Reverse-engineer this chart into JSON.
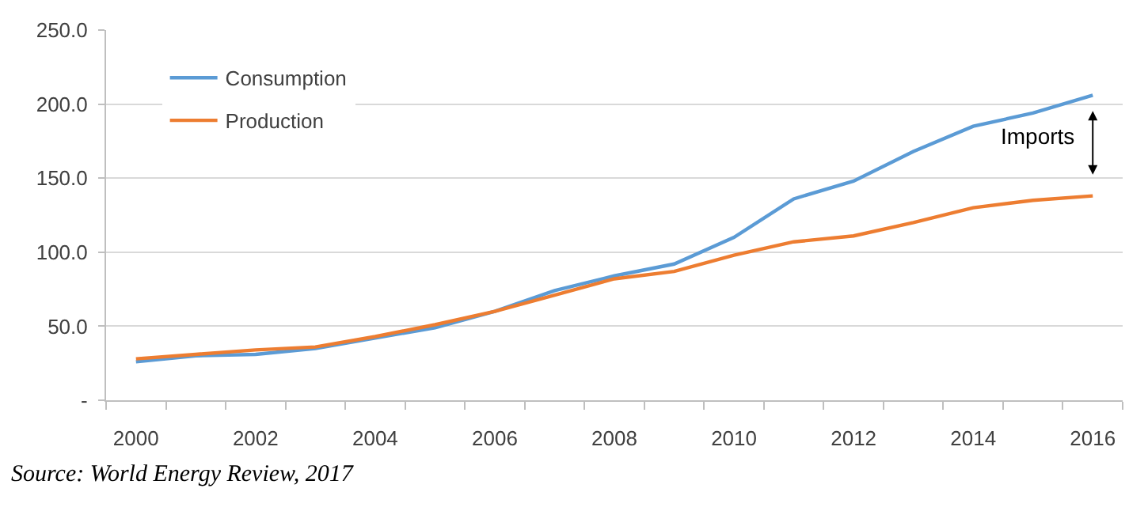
{
  "chart_data": {
    "type": "line",
    "categories": [
      "2000",
      null,
      "2002",
      null,
      "2004",
      null,
      "2006",
      null,
      "2008",
      null,
      "2010",
      null,
      "2012",
      null,
      "2014",
      null,
      "2016"
    ],
    "series": [
      {
        "name": "Consumption",
        "color": "#5b9bd5",
        "values": [
          26,
          30,
          31,
          35,
          42,
          49,
          60,
          74,
          84,
          92,
          110,
          136,
          148,
          168,
          185,
          194,
          206
        ]
      },
      {
        "name": "Production",
        "color": "#ed7d31",
        "values": [
          28,
          31,
          34,
          36,
          43,
          51,
          60,
          71,
          82,
          87,
          98,
          107,
          111,
          120,
          130,
          135,
          138
        ]
      }
    ],
    "ylim": [
      0,
      250
    ],
    "yticks": [
      {
        "value": 0,
        "label": "-"
      },
      {
        "value": 50,
        "label": "50.0"
      },
      {
        "value": 100,
        "label": "100.0"
      },
      {
        "value": 150,
        "label": "150.0"
      },
      {
        "value": 200,
        "label": "200.0"
      },
      {
        "value": 250,
        "label": "250.0"
      }
    ],
    "grid": "y",
    "legend": "top left",
    "annotations": [
      "Imports",
      "Source: World Energy Review, 2017"
    ]
  }
}
